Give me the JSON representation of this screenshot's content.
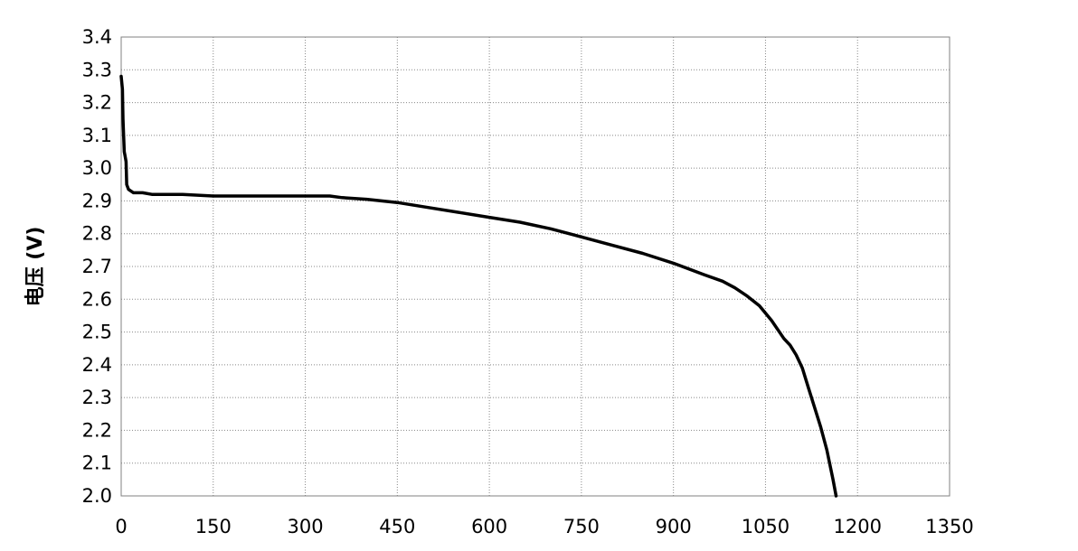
{
  "chart_data": {
    "type": "line",
    "title": "",
    "xlabel": "",
    "ylabel": "电压 (V)",
    "xlim": [
      0,
      1350
    ],
    "ylim": [
      2.0,
      3.4
    ],
    "x_ticks": [
      "0",
      "150",
      "300",
      "450",
      "600",
      "750",
      "900",
      "1050",
      "1200",
      "1350"
    ],
    "y_ticks": [
      "2.0",
      "2.1",
      "2.2",
      "2.3",
      "2.4",
      "2.5",
      "2.6",
      "2.7",
      "2.8",
      "2.9",
      "3.0",
      "3.1",
      "3.2",
      "3.3",
      "3.4"
    ],
    "grid": true,
    "series": [
      {
        "name": "",
        "color": "#000000",
        "points": [
          [
            0,
            3.28
          ],
          [
            2,
            3.24
          ],
          [
            3,
            3.15
          ],
          [
            4,
            3.1
          ],
          [
            5,
            3.05
          ],
          [
            6,
            3.04
          ],
          [
            8,
            3.02
          ],
          [
            9,
            2.95
          ],
          [
            12,
            2.935
          ],
          [
            20,
            2.925
          ],
          [
            35,
            2.925
          ],
          [
            50,
            2.92
          ],
          [
            100,
            2.92
          ],
          [
            150,
            2.915
          ],
          [
            200,
            2.915
          ],
          [
            250,
            2.915
          ],
          [
            300,
            2.915
          ],
          [
            340,
            2.915
          ],
          [
            360,
            2.91
          ],
          [
            400,
            2.905
          ],
          [
            450,
            2.895
          ],
          [
            500,
            2.88
          ],
          [
            550,
            2.865
          ],
          [
            600,
            2.85
          ],
          [
            650,
            2.835
          ],
          [
            700,
            2.815
          ],
          [
            750,
            2.79
          ],
          [
            800,
            2.765
          ],
          [
            850,
            2.74
          ],
          [
            900,
            2.71
          ],
          [
            950,
            2.675
          ],
          [
            980,
            2.655
          ],
          [
            1000,
            2.635
          ],
          [
            1020,
            2.61
          ],
          [
            1040,
            2.58
          ],
          [
            1060,
            2.535
          ],
          [
            1080,
            2.48
          ],
          [
            1090,
            2.46
          ],
          [
            1100,
            2.43
          ],
          [
            1110,
            2.39
          ],
          [
            1120,
            2.33
          ],
          [
            1130,
            2.27
          ],
          [
            1140,
            2.21
          ],
          [
            1150,
            2.14
          ],
          [
            1160,
            2.05
          ],
          [
            1165,
            2.0
          ]
        ]
      }
    ]
  }
}
